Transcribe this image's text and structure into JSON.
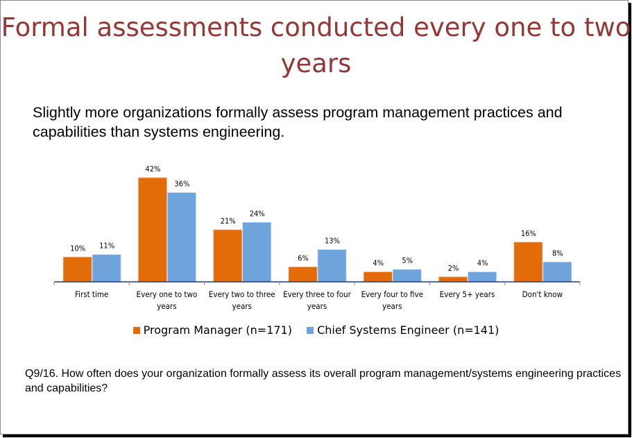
{
  "title": "Formal assessments conducted every one to two years",
  "subtitle": "Slightly more organizations formally assess program management practices and capabilities than systems engineering.",
  "question": "Q9/16.  How often does your organization formally assess its overall program  management/systems engineering practices and capabilities?",
  "chart_data": {
    "type": "bar",
    "categories": [
      [
        "First time"
      ],
      [
        "Every one to two",
        "years"
      ],
      [
        "Every two to three",
        "years"
      ],
      [
        "Every three to four",
        "years"
      ],
      [
        "Every four to five",
        "years"
      ],
      [
        "Every 5+ years"
      ],
      [
        "Don't know"
      ]
    ],
    "series": [
      {
        "name": "Program Manager (n=171)",
        "color": "#E36C0A",
        "values": [
          10,
          42,
          21,
          6,
          4,
          2,
          16
        ],
        "labels": [
          "10%",
          "42%",
          "21%",
          "6%",
          "4%",
          "2%",
          "16%"
        ]
      },
      {
        "name": "Chief Systems Engineer (n=141)",
        "color": "#6FA3DC",
        "values": [
          11,
          36,
          24,
          13,
          5,
          4,
          8
        ],
        "labels": [
          "11%",
          "36%",
          "24%",
          "13%",
          "5%",
          "4%",
          "8%"
        ]
      }
    ],
    "ylim": [
      0,
      45
    ],
    "grid": false,
    "legend": "bottom",
    "axis_color": "#1F3C88"
  }
}
